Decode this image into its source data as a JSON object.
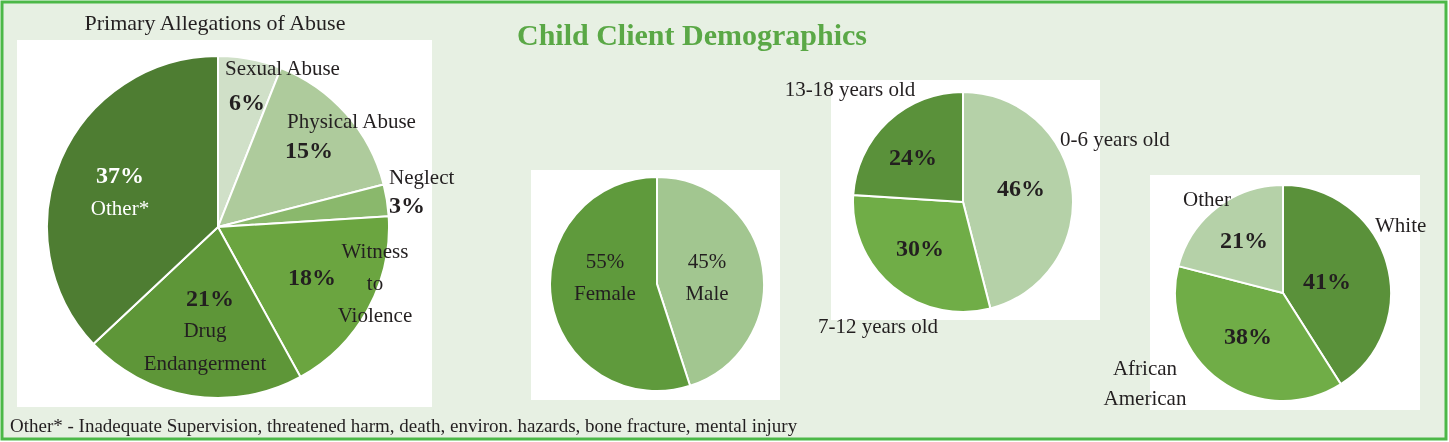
{
  "chart_data": [
    {
      "type": "pie",
      "title": "Primary Allegations of Abuse",
      "categories": [
        "Sexual Abuse",
        "Physical Abuse",
        "Neglect",
        "Witness to Violence",
        "Drug Endangerment",
        "Other*"
      ],
      "values": [
        6,
        15,
        3,
        18,
        21,
        37
      ],
      "value_labels": [
        "6%",
        "15%",
        "3%",
        "18%",
        "21%",
        "37%"
      ],
      "colors": [
        "#d0e0c8",
        "#aecb9c",
        "#8ab86c",
        "#6ba540",
        "#5e9638",
        "#4e7d32"
      ],
      "annotations": [
        "Other* - Inadequate Supervision, threatened harm, death, environ. hazards, bone fracture, mental injury"
      ]
    },
    {
      "type": "pie",
      "title": "Child Client Demographics",
      "categories": [
        "Male",
        "Female"
      ],
      "values": [
        45,
        55
      ],
      "value_labels": [
        "45%",
        "55%"
      ],
      "colors": [
        "#a2c690",
        "#5f9a3c"
      ]
    },
    {
      "type": "pie",
      "categories": [
        "0-6 years old",
        "7-12 years old",
        "13-18 years old"
      ],
      "values": [
        46,
        30,
        24
      ],
      "value_labels": [
        "46%",
        "30%",
        "24%"
      ],
      "colors": [
        "#b5d1a8",
        "#70ad47",
        "#5a913a"
      ]
    },
    {
      "type": "pie",
      "categories": [
        "White",
        "African American",
        "Other"
      ],
      "values": [
        41,
        38,
        21
      ],
      "value_labels": [
        "41%",
        "38%",
        "21%"
      ],
      "colors": [
        "#5a913a",
        "#70ad47",
        "#b5d1a8"
      ]
    }
  ]
}
